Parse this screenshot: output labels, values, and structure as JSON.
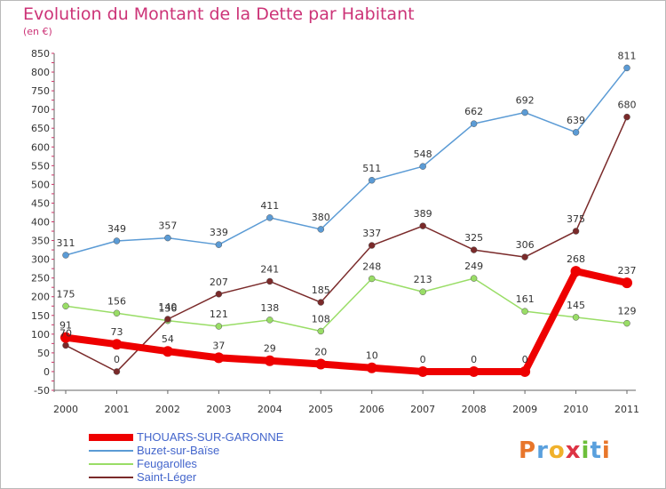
{
  "title": "Evolution du Montant de la Dette par Habitant",
  "unit": "(en €)",
  "logo": "Proxiti",
  "chart_data": {
    "type": "line",
    "x": [
      "2000",
      "2001",
      "2002",
      "2003",
      "2004",
      "2005",
      "2006",
      "2007",
      "2008",
      "2009",
      "2010",
      "2011"
    ],
    "ylim": [
      -50,
      850
    ],
    "yticks": [
      -50,
      0,
      50,
      100,
      150,
      200,
      250,
      300,
      350,
      400,
      450,
      500,
      550,
      600,
      650,
      700,
      750,
      800,
      850
    ],
    "grid": false,
    "legend_position": "bottom-left",
    "series": [
      {
        "name": "THOUARS-SUR-GARONNE",
        "color": "#ee0000",
        "values": [
          91,
          73,
          54,
          37,
          29,
          20,
          10,
          0,
          0,
          0,
          268,
          237
        ]
      },
      {
        "name": "Buzet-sur-Baïse",
        "color": "#5b9bd5",
        "values": [
          311,
          349,
          357,
          339,
          411,
          380,
          511,
          548,
          662,
          692,
          639,
          811
        ]
      },
      {
        "name": "Feugarolles",
        "color": "#99dd66",
        "values": [
          175,
          156,
          136,
          121,
          138,
          108,
          248,
          213,
          249,
          161,
          145,
          129
        ]
      },
      {
        "name": "Saint-Léger",
        "color": "#7a2a2a",
        "values": [
          70,
          0,
          140,
          207,
          241,
          185,
          337,
          389,
          325,
          306,
          375,
          680
        ]
      }
    ]
  }
}
